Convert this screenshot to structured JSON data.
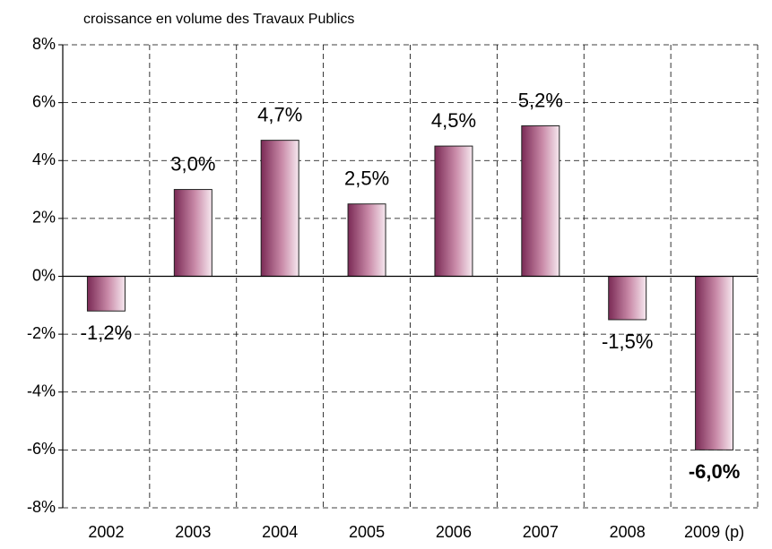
{
  "chart_data": {
    "type": "bar",
    "title": "croissance en volume des Travaux Publics",
    "categories": [
      "2002",
      "2003",
      "2004",
      "2005",
      "2006",
      "2007",
      "2008",
      "2009 (p)"
    ],
    "values": [
      -1.2,
      3.0,
      4.7,
      2.5,
      4.5,
      5.2,
      -1.5,
      -6.0
    ],
    "value_labels": [
      "-1,2%",
      "3,0%",
      "4,7%",
      "2,5%",
      "4,5%",
      "5,2%",
      "-1,5%",
      "-6,0%"
    ],
    "color": "#7a2a55",
    "ylim": [
      -8,
      8
    ],
    "yticks": [
      {
        "value": -8,
        "label": "-8%"
      },
      {
        "value": -6,
        "label": "-6%"
      },
      {
        "value": -4,
        "label": "-4%"
      },
      {
        "value": -2,
        "label": "-2%"
      },
      {
        "value": 0,
        "label": "0%"
      },
      {
        "value": 2,
        "label": "2%"
      },
      {
        "value": 4,
        "label": "4%"
      },
      {
        "value": 6,
        "label": "6%"
      },
      {
        "value": 8,
        "label": "8%"
      }
    ],
    "grid": true
  }
}
